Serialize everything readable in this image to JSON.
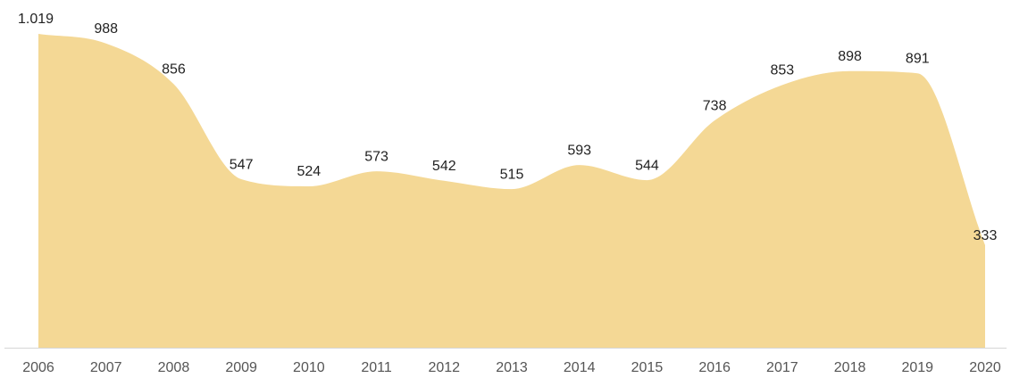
{
  "chart_data": {
    "type": "area",
    "categories": [
      "2006",
      "2007",
      "2008",
      "2009",
      "2010",
      "2011",
      "2012",
      "2013",
      "2014",
      "2015",
      "2016",
      "2017",
      "2018",
      "2019",
      "2020"
    ],
    "values": [
      1019,
      988,
      856,
      547,
      524,
      573,
      542,
      515,
      593,
      544,
      738,
      853,
      898,
      891,
      333
    ],
    "value_labels": [
      "1.019",
      "988",
      "856",
      "547",
      "524",
      "573",
      "542",
      "515",
      "593",
      "544",
      "738",
      "853",
      "898",
      "891",
      "333"
    ],
    "color": "#f4d895"
  }
}
